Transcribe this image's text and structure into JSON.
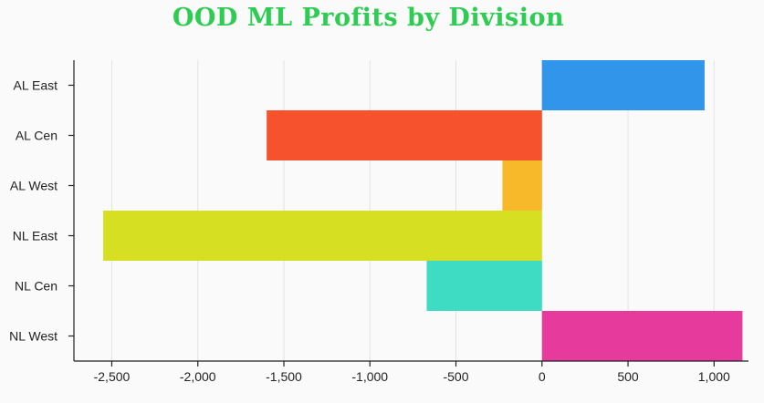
{
  "chart_data": {
    "type": "bar",
    "orientation": "horizontal",
    "title": "OOD ML Profits by Division",
    "title_color": "#2ecc52",
    "categories": [
      "AL East",
      "AL Cen",
      "AL West",
      "NL East",
      "NL Cen",
      "NL West"
    ],
    "values": [
      945,
      -1600,
      -230,
      -2550,
      -670,
      1165
    ],
    "colors": [
      "#3196ea",
      "#f7522e",
      "#f7b92a",
      "#d7df23",
      "#3ddcc3",
      "#e63b9c"
    ],
    "xlabel": "",
    "ylabel": "",
    "xlim": [
      -2720,
      1200
    ],
    "xticks": [
      -2500,
      -2000,
      -1500,
      -1000,
      -500,
      0,
      500,
      1000
    ],
    "xtick_labels": [
      "-2,500",
      "-2,000",
      "-1,500",
      "-1,000",
      "-500",
      "0",
      "500",
      "1,000"
    ],
    "grid": "vertical",
    "legend": "none"
  }
}
